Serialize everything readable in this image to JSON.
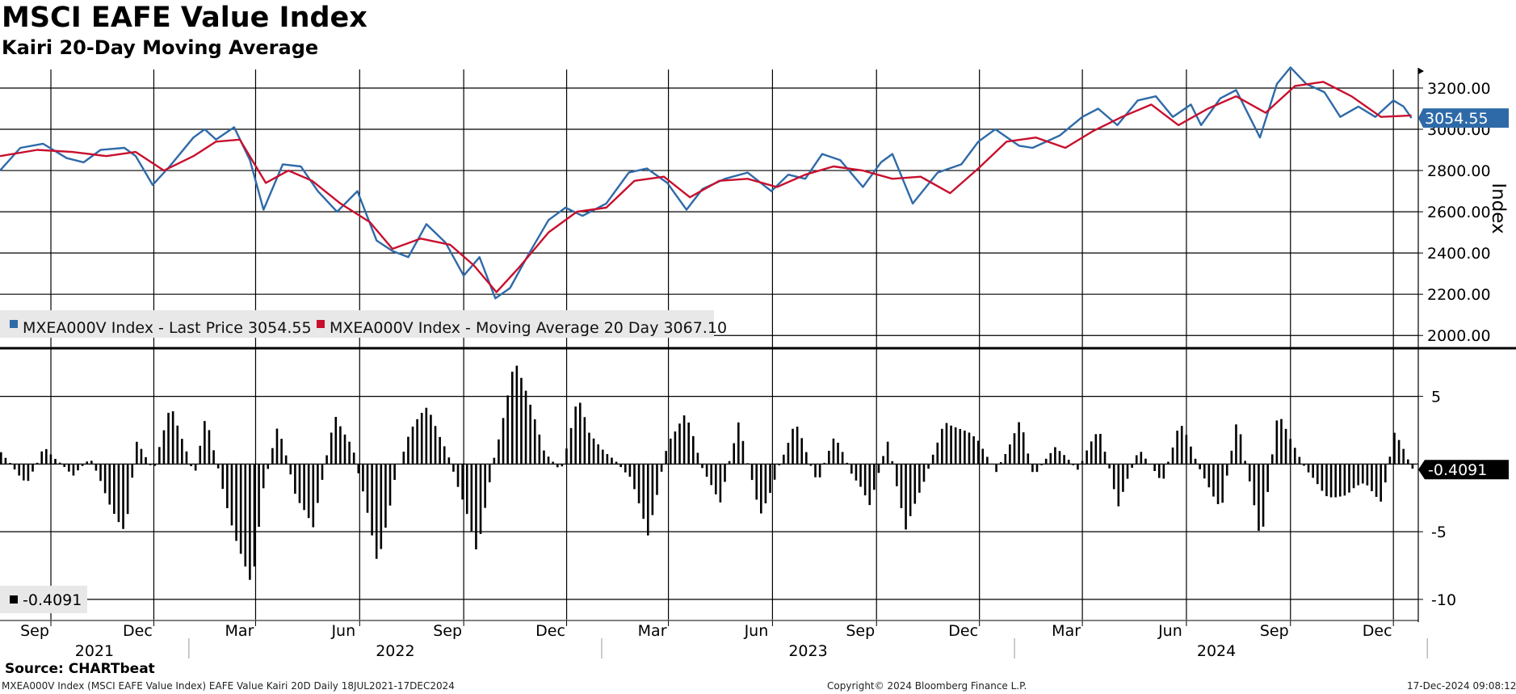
{
  "header": {
    "title": "MSCI EAFE Value Index",
    "subtitle": "Kairi 20-Day Moving Average"
  },
  "footer": {
    "source": "Source: CHARTbeat",
    "description": "MXEA000V Index (MSCI EAFE Value Index) EAFE Value Kairi 20D  Daily 18JUL2021-17DEC2024",
    "copyright": "Copyright© 2024 Bloomberg Finance L.P.",
    "timestamp": "17-Dec-2024 09:08:12"
  },
  "colors": {
    "price": "#2e6aa8",
    "moving_average": "#c8102e",
    "kairi": "#000000",
    "grid": "#000000"
  },
  "chart_data": [
    {
      "type": "line",
      "panel": "price",
      "ylabel": "Index",
      "ylim": [
        1950,
        3290
      ],
      "yticks": [
        "3200.00",
        "3000.00",
        "2800.00",
        "2600.00",
        "2400.00",
        "2200.00",
        "2000.00"
      ],
      "x_range": [
        "2021-07-18",
        "2024-12-17"
      ],
      "series": [
        {
          "name": "MXEA000V Index - Last Price 3054.55",
          "color": "#2e6aa8",
          "x": [
            "2021-07-18",
            "2021-08-05",
            "2021-08-25",
            "2021-09-15",
            "2021-09-30",
            "2021-10-15",
            "2021-11-05",
            "2021-11-15",
            "2021-11-30",
            "2021-12-15",
            "2022-01-05",
            "2022-01-15",
            "2022-01-25",
            "2022-02-10",
            "2022-02-24",
            "2022-03-08",
            "2022-03-25",
            "2022-04-10",
            "2022-04-25",
            "2022-05-12",
            "2022-05-30",
            "2022-06-16",
            "2022-06-30",
            "2022-07-14",
            "2022-07-30",
            "2022-08-16",
            "2022-09-01",
            "2022-09-15",
            "2022-09-29",
            "2022-10-12",
            "2022-10-28",
            "2022-11-15",
            "2022-11-30",
            "2022-12-15",
            "2023-01-05",
            "2023-01-25",
            "2023-02-10",
            "2023-02-28",
            "2023-03-17",
            "2023-03-31",
            "2023-04-20",
            "2023-05-10",
            "2023-05-31",
            "2023-06-15",
            "2023-06-30",
            "2023-07-15",
            "2023-07-31",
            "2023-08-20",
            "2023-09-05",
            "2023-09-15",
            "2023-10-03",
            "2023-10-25",
            "2023-11-15",
            "2023-11-30",
            "2023-12-15",
            "2024-01-05",
            "2024-01-17",
            "2024-02-10",
            "2024-03-01",
            "2024-03-15",
            "2024-04-01",
            "2024-04-19",
            "2024-05-05",
            "2024-05-20",
            "2024-06-05",
            "2024-06-14",
            "2024-07-01",
            "2024-07-15",
            "2024-08-05",
            "2024-08-20",
            "2024-09-01",
            "2024-09-15",
            "2024-10-01",
            "2024-10-15",
            "2024-10-31",
            "2024-11-15",
            "2024-12-01",
            "2024-12-10",
            "2024-12-17"
          ],
          "values": [
            2800,
            2910,
            2930,
            2860,
            2840,
            2900,
            2910,
            2870,
            2730,
            2820,
            2960,
            3000,
            2950,
            3010,
            2850,
            2610,
            2830,
            2820,
            2700,
            2600,
            2700,
            2460,
            2410,
            2380,
            2540,
            2450,
            2290,
            2380,
            2180,
            2230,
            2390,
            2560,
            2620,
            2580,
            2640,
            2790,
            2810,
            2740,
            2610,
            2710,
            2760,
            2790,
            2700,
            2780,
            2760,
            2880,
            2850,
            2720,
            2840,
            2880,
            2640,
            2790,
            2830,
            2940,
            3000,
            2920,
            2910,
            2970,
            3060,
            3100,
            3020,
            3140,
            3160,
            3060,
            3120,
            3020,
            3150,
            3190,
            2960,
            3220,
            3300,
            3220,
            3180,
            3060,
            3110,
            3060,
            3140,
            3110,
            3054.55
          ]
        },
        {
          "name": "MXEA000V Index - Moving Average 20 Day 3067.10",
          "color": "#c8102e",
          "x": [
            "2021-07-18",
            "2021-08-20",
            "2021-09-20",
            "2021-10-20",
            "2021-11-15",
            "2021-12-10",
            "2022-01-05",
            "2022-01-25",
            "2022-02-15",
            "2022-03-10",
            "2022-03-30",
            "2022-04-20",
            "2022-05-15",
            "2022-06-10",
            "2022-06-30",
            "2022-07-25",
            "2022-08-20",
            "2022-09-10",
            "2022-09-30",
            "2022-10-20",
            "2022-11-15",
            "2022-12-10",
            "2023-01-05",
            "2023-01-30",
            "2023-02-25",
            "2023-03-20",
            "2023-04-15",
            "2023-05-10",
            "2023-06-05",
            "2023-06-30",
            "2023-07-25",
            "2023-08-20",
            "2023-09-15",
            "2023-10-10",
            "2023-11-05",
            "2023-11-30",
            "2023-12-25",
            "2024-01-20",
            "2024-02-15",
            "2024-03-10",
            "2024-04-05",
            "2024-05-01",
            "2024-05-25",
            "2024-06-20",
            "2024-07-15",
            "2024-08-10",
            "2024-09-05",
            "2024-09-30",
            "2024-10-25",
            "2024-11-20",
            "2024-12-17"
          ],
          "values": [
            2870,
            2900,
            2890,
            2870,
            2890,
            2800,
            2870,
            2940,
            2950,
            2740,
            2800,
            2750,
            2640,
            2550,
            2420,
            2470,
            2440,
            2340,
            2210,
            2330,
            2500,
            2600,
            2620,
            2750,
            2770,
            2670,
            2750,
            2760,
            2720,
            2780,
            2820,
            2800,
            2760,
            2770,
            2690,
            2810,
            2940,
            2960,
            2910,
            2990,
            3060,
            3120,
            3020,
            3100,
            3160,
            3080,
            3210,
            3230,
            3160,
            3060,
            3067.1
          ]
        }
      ]
    },
    {
      "type": "bar",
      "panel": "kairi",
      "ylim": [
        -11.5,
        8.5
      ],
      "yticks": [
        "5",
        "-5",
        "-10"
      ],
      "legend": "-0.4091",
      "last_value_label": "-0.4091",
      "series": [
        {
          "name": "-0.4091",
          "color": "#000000",
          "x": [
            "2021-07-18",
            "2021-08-10",
            "2021-08-25",
            "2021-09-20",
            "2021-10-05",
            "2021-10-20",
            "2021-11-05",
            "2021-11-15",
            "2021-11-30",
            "2021-12-15",
            "2022-01-05",
            "2022-01-15",
            "2022-02-10",
            "2022-02-25",
            "2022-03-07",
            "2022-03-20",
            "2022-04-05",
            "2022-04-20",
            "2022-05-09",
            "2022-05-25",
            "2022-06-16",
            "2022-07-01",
            "2022-07-14",
            "2022-07-30",
            "2022-08-15",
            "2022-09-01",
            "2022-09-12",
            "2022-09-25",
            "2022-10-15",
            "2022-10-31",
            "2022-11-10",
            "2022-11-25",
            "2022-12-10",
            "2022-12-20",
            "2023-01-10",
            "2023-01-25",
            "2023-02-10",
            "2023-02-28",
            "2023-03-15",
            "2023-03-31",
            "2023-04-15",
            "2023-05-01",
            "2023-05-20",
            "2023-06-05",
            "2023-06-20",
            "2023-07-10",
            "2023-07-25",
            "2023-08-10",
            "2023-08-25",
            "2023-09-10",
            "2023-09-26",
            "2023-10-10",
            "2023-10-30",
            "2023-11-15",
            "2023-11-30",
            "2023-12-15",
            "2024-01-05",
            "2024-01-17",
            "2024-02-05",
            "2024-02-25",
            "2024-03-15",
            "2024-04-01",
            "2024-04-19",
            "2024-05-10",
            "2024-05-25",
            "2024-06-14",
            "2024-07-01",
            "2024-07-15",
            "2024-08-05",
            "2024-08-20",
            "2024-09-01",
            "2024-09-15",
            "2024-10-01",
            "2024-10-20",
            "2024-11-05",
            "2024-11-20",
            "2024-12-01",
            "2024-12-17"
          ],
          "values": [
            1.0,
            -1.6,
            1.2,
            -0.8,
            0.4,
            -2.5,
            -4.8,
            1.5,
            -0.5,
            4.8,
            -1.0,
            3.3,
            -5.2,
            -9.4,
            -2.0,
            3.3,
            -2.5,
            -5.0,
            4.0,
            1.2,
            -7.5,
            -1.0,
            2.2,
            4.0,
            1.4,
            -3.2,
            -7.0,
            -0.3,
            7.8,
            3.5,
            1.0,
            -0.5,
            4.8,
            2.0,
            0.5,
            -1.0,
            -5.5,
            2.0,
            3.6,
            -0.6,
            -2.5,
            3.0,
            -4.0,
            -0.3,
            3.0,
            -1.5,
            2.5,
            -1.0,
            -3.2,
            2.0,
            -5.0,
            -2.0,
            3.5,
            2.3,
            1.5,
            -0.5,
            3.0,
            -1.0,
            1.5,
            -0.5,
            2.8,
            -3.0,
            1.0,
            -1.2,
            3.0,
            -0.8,
            -3.0,
            3.2,
            -5.8,
            4.2,
            1.5,
            -0.6,
            -2.0,
            -2.5,
            -1.5,
            -2.5,
            2.4,
            -0.4091
          ]
        }
      ]
    }
  ],
  "x_axis": {
    "months": [
      {
        "label": "Sep",
        "date": "2021-09-01"
      },
      {
        "label": "Dec",
        "date": "2021-12-01"
      },
      {
        "label": "Mar",
        "date": "2022-03-01"
      },
      {
        "label": "Jun",
        "date": "2022-06-01"
      },
      {
        "label": "Sep",
        "date": "2022-09-01"
      },
      {
        "label": "Dec",
        "date": "2022-12-01"
      },
      {
        "label": "Mar",
        "date": "2023-03-01"
      },
      {
        "label": "Jun",
        "date": "2023-06-01"
      },
      {
        "label": "Sep",
        "date": "2023-09-01"
      },
      {
        "label": "Dec",
        "date": "2023-12-01"
      },
      {
        "label": "Mar",
        "date": "2024-03-01"
      },
      {
        "label": "Jun",
        "date": "2024-06-01"
      },
      {
        "label": "Sep",
        "date": "2024-09-01"
      },
      {
        "label": "Dec",
        "date": "2024-12-01"
      }
    ],
    "years": [
      {
        "label": "2021",
        "from": "2021-07-18",
        "to": "2022-01-01"
      },
      {
        "label": "2022",
        "from": "2022-01-01",
        "to": "2023-01-01"
      },
      {
        "label": "2023",
        "from": "2023-01-01",
        "to": "2024-01-01"
      },
      {
        "label": "2024",
        "from": "2024-01-01",
        "to": "2024-12-31"
      }
    ]
  },
  "price_last_label": "3054.55"
}
